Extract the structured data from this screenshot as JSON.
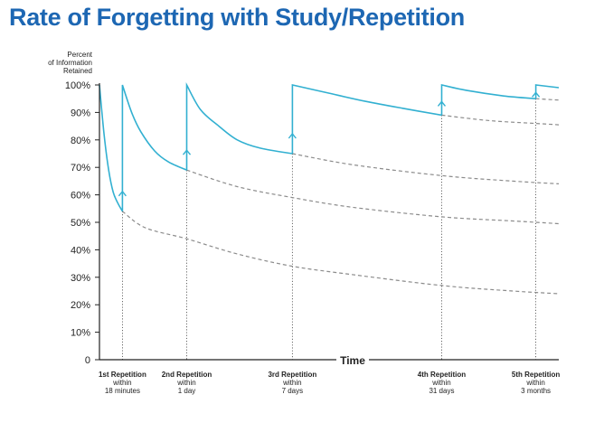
{
  "title": "Rate of Forgetting with Study/Repetition",
  "chart_data": {
    "type": "line",
    "title": "Rate of Forgetting with Study/Repetition",
    "ylabel": [
      "Percent",
      "of Information",
      "Retained"
    ],
    "xlabel": "Time",
    "ylim": [
      0,
      100
    ],
    "yticks": [
      "0",
      "10%",
      "20%",
      "30%",
      "40%",
      "50%",
      "60%",
      "70%",
      "80%",
      "90%",
      "100%"
    ],
    "ytick_values": [
      0,
      10,
      20,
      30,
      40,
      50,
      60,
      70,
      80,
      90,
      100
    ],
    "x_domain": [
      0,
      100
    ],
    "repetitions": [
      {
        "label": "1st Repetition",
        "within": "within",
        "period": "18 minutes",
        "x": 5,
        "retained_before": 54
      },
      {
        "label": "2nd Repetition",
        "within": "within",
        "period": "1 day",
        "x": 19,
        "retained_before": 69
      },
      {
        "label": "3rd Repetition",
        "within": "within",
        "period": "7 days",
        "x": 42,
        "retained_before": 75
      },
      {
        "label": "4th Repetition",
        "within": "within",
        "period": "31 days",
        "x": 74.5,
        "retained_before": 89
      },
      {
        "label": "5th Repetition",
        "within": "within",
        "period": "3 months",
        "x": 95,
        "retained_before": 95
      }
    ],
    "series": [
      {
        "name": "retention with repetition",
        "style": "solid",
        "color": "#32b0d1",
        "segments": [
          [
            [
              0,
              100
            ],
            [
              1,
              82
            ],
            [
              2,
              69
            ],
            [
              3,
              61
            ],
            [
              4,
              57
            ],
            [
              5,
              54
            ]
          ],
          [
            [
              5,
              54
            ],
            [
              5,
              100
            ],
            [
              7,
              90
            ],
            [
              9,
              83
            ],
            [
              12,
              76
            ],
            [
              15,
              72
            ],
            [
              19,
              69
            ]
          ],
          [
            [
              19,
              69
            ],
            [
              19,
              100
            ],
            [
              22,
              91
            ],
            [
              26,
              85
            ],
            [
              30,
              80
            ],
            [
              35,
              77
            ],
            [
              42,
              75
            ]
          ],
          [
            [
              42,
              75
            ],
            [
              42,
              100
            ],
            [
              50,
              97
            ],
            [
              58,
              94
            ],
            [
              66,
              91.5
            ],
            [
              74.5,
              89
            ]
          ],
          [
            [
              74.5,
              89
            ],
            [
              74.5,
              100
            ],
            [
              80,
              98
            ],
            [
              88,
              96
            ],
            [
              95,
              95
            ]
          ],
          [
            [
              95,
              95
            ],
            [
              95,
              100
            ],
            [
              100,
              99
            ]
          ]
        ]
      },
      {
        "name": "forgetting after 1st repetition",
        "style": "dashed",
        "color": "#8c8c8c",
        "points": [
          [
            5,
            54
          ],
          [
            10,
            48
          ],
          [
            19,
            44
          ],
          [
            30,
            38.5
          ],
          [
            42,
            34
          ],
          [
            55,
            31
          ],
          [
            74.5,
            27
          ],
          [
            90,
            25
          ],
          [
            100,
            24
          ]
        ]
      },
      {
        "name": "forgetting after 2nd repetition",
        "style": "dashed",
        "color": "#8c8c8c",
        "points": [
          [
            19,
            69
          ],
          [
            30,
            63
          ],
          [
            42,
            59
          ],
          [
            55,
            55.5
          ],
          [
            74.5,
            52
          ],
          [
            90,
            50.5
          ],
          [
            100,
            49.5
          ]
        ]
      },
      {
        "name": "forgetting after 3rd repetition",
        "style": "dashed",
        "color": "#8c8c8c",
        "points": [
          [
            42,
            75
          ],
          [
            55,
            71
          ],
          [
            74.5,
            67
          ],
          [
            90,
            65
          ],
          [
            100,
            64
          ]
        ]
      },
      {
        "name": "forgetting after 4th repetition",
        "style": "dashed",
        "color": "#8c8c8c",
        "points": [
          [
            74.5,
            89
          ],
          [
            85,
            87
          ],
          [
            95,
            86
          ],
          [
            100,
            85.5
          ]
        ]
      },
      {
        "name": "forgetting after 5th repetition",
        "style": "dashed",
        "color": "#8c8c8c",
        "points": [
          [
            95,
            95
          ],
          [
            100,
            94.5
          ]
        ]
      }
    ]
  }
}
